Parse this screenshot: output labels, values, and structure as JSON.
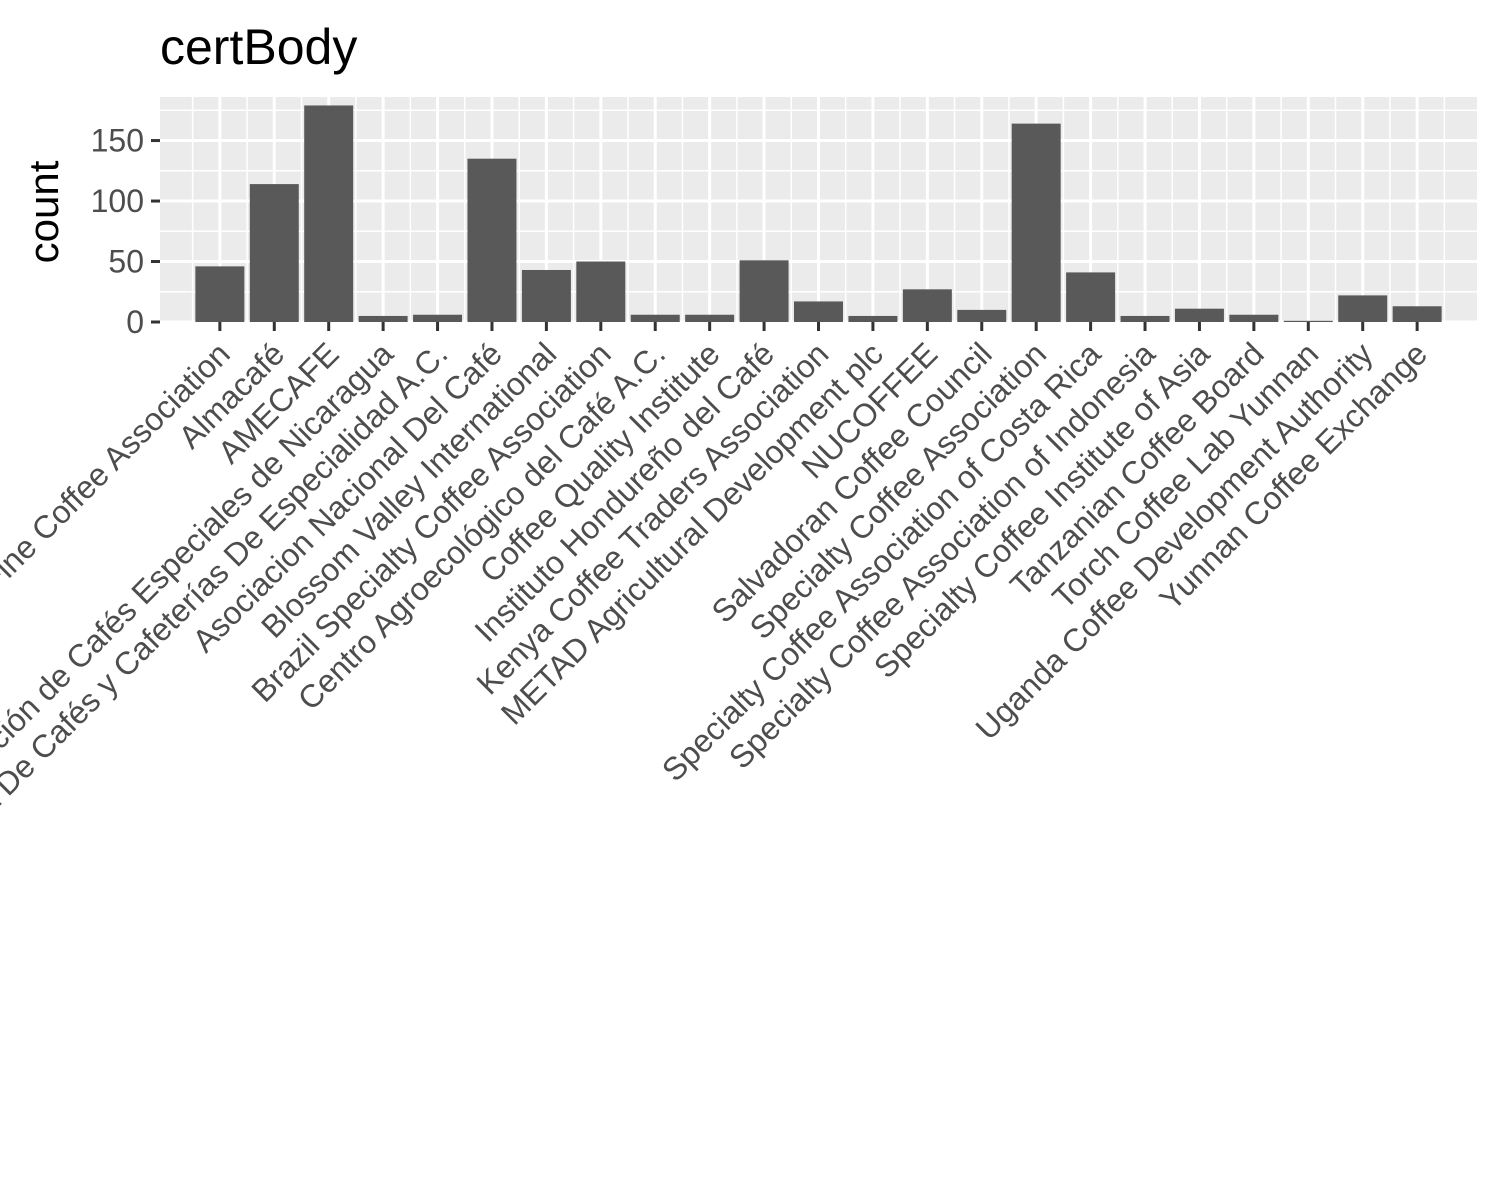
{
  "chart_data": {
    "type": "bar",
    "title": "certBody",
    "xlabel": "",
    "ylabel": "count",
    "ylim": [
      0,
      186
    ],
    "yticks": [
      0,
      50,
      100,
      150
    ],
    "grid": true,
    "colors": {
      "panel": "#ebebeb",
      "grid": "#ffffff",
      "bar": "#595959",
      "tick_label": "#4d4d4d",
      "tick": "#333333"
    },
    "categories": [
      "Africa Fine Coffee Association",
      "Almacafé",
      "AMECAFE",
      "Asociación de Cafés Especiales de Nicaragua",
      "Asociación Mexicana De Cafés y Cafeterías De Especialidad A.C.",
      "Asociacion Nacional Del Café",
      "Blossom Valley International",
      "Brazil Specialty Coffee Association",
      "Centro Agroecológico del Café A.C.",
      "Coffee Quality Institute",
      "Instituto Hondureño del Café",
      "Kenya Coffee Traders Association",
      "METAD Agricultural Development plc",
      "NUCOFFEE",
      "Salvadoran Coffee Council",
      "Specialty Coffee Association",
      "Specialty Coffee Association of Costa Rica",
      "Specialty Coffee Association of Indonesia",
      "Specialty Coffee Institute of Asia",
      "Tanzanian Coffee Board",
      "Torch Coffee Lab Yunnan",
      "Uganda Coffee Development Authority",
      "Yunnan Coffee Exchange"
    ],
    "values": [
      46,
      114,
      179,
      5,
      6,
      135,
      43,
      50,
      6,
      6,
      51,
      17,
      5,
      27,
      10,
      164,
      41,
      5,
      11,
      6,
      1,
      22,
      13
    ]
  }
}
